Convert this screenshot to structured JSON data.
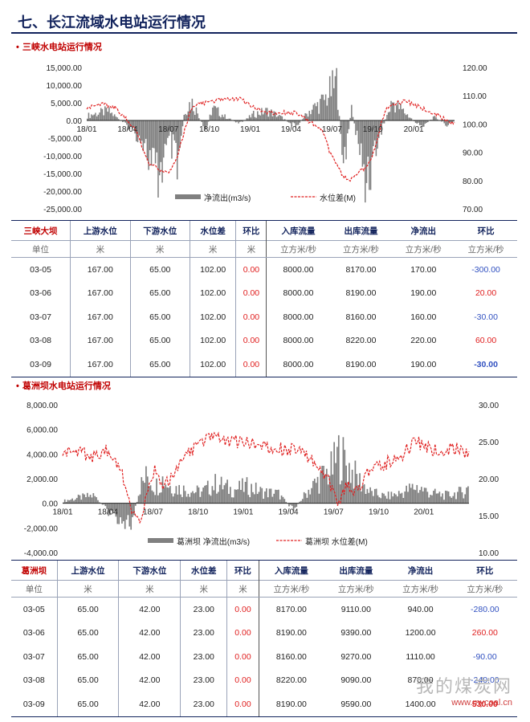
{
  "page": {
    "title": "七、长江流域水电站运行情况"
  },
  "section1": {
    "title": "三峡水电站运行情况"
  },
  "section2": {
    "title": "葛洲坝水电站运行情况"
  },
  "chart_data": [
    {
      "type": "bar+line",
      "title": "三峡水电站运行情况",
      "x_ticks": [
        "18/01",
        "18/04",
        "18/07",
        "18/10",
        "19/01",
        "19/04",
        "19/07",
        "19/10",
        "20/01"
      ],
      "y_left_ticks": [
        "15,000.00",
        "10,000.00",
        "5,000.00",
        "0.00",
        "-5,000.00",
        "-10,000.00",
        "-15,000.00",
        "-20,000.00",
        "-25,000.00"
      ],
      "y_right_ticks": [
        "120.00",
        "110.00",
        "100.00",
        "90.00",
        "80.00",
        "70.00"
      ],
      "ylim_left": [
        -25000,
        15000
      ],
      "ylim_right": [
        70,
        120
      ],
      "legend": [
        "净流出(m3/s)",
        "水位差(M)"
      ],
      "colors": {
        "bars": "#808080",
        "line": "#e02020"
      },
      "series": [
        {
          "name": "净流出(m3/s)",
          "axis": "left",
          "kind": "bar",
          "anchors": [
            [
              0,
              1500
            ],
            [
              3,
              3000
            ],
            [
              6,
              -2000
            ],
            [
              8,
              -6000
            ],
            [
              10,
              -19000
            ],
            [
              11,
              -12000
            ],
            [
              12,
              -7000
            ],
            [
              13,
              -17000
            ],
            [
              14,
              3000
            ],
            [
              15,
              6000
            ],
            [
              16,
              2000
            ],
            [
              17,
              -4000
            ],
            [
              18,
              4000
            ],
            [
              20,
              1000
            ],
            [
              22,
              -1000
            ],
            [
              24,
              2000
            ],
            [
              26,
              3000
            ],
            [
              28,
              1000
            ],
            [
              30,
              -2000
            ],
            [
              32,
              3000
            ],
            [
              34,
              6000
            ],
            [
              36,
              12000
            ],
            [
              37,
              -17000
            ],
            [
              38,
              4000
            ],
            [
              40,
              -18000
            ],
            [
              41,
              -13000
            ],
            [
              42,
              -5000
            ],
            [
              44,
              6000
            ],
            [
              46,
              2000
            ],
            [
              48,
              -2000
            ],
            [
              50,
              1000
            ],
            [
              52,
              -1500
            ],
            [
              53,
              0
            ]
          ]
        },
        {
          "name": "水位差(M)",
          "axis": "right",
          "kind": "line",
          "anchors": [
            [
              0,
              106
            ],
            [
              2,
              107
            ],
            [
              4,
              106
            ],
            [
              6,
              101
            ],
            [
              7,
              98
            ],
            [
              8,
              92
            ],
            [
              9,
              86
            ],
            [
              10,
              85
            ],
            [
              11,
              83
            ],
            [
              12,
              83
            ],
            [
              13,
              88
            ],
            [
              14,
              97
            ],
            [
              15,
              105
            ],
            [
              16,
              107
            ],
            [
              18,
              108
            ],
            [
              20,
              109
            ],
            [
              22,
              109
            ],
            [
              24,
              106
            ],
            [
              26,
              104
            ],
            [
              28,
              104
            ],
            [
              30,
              104
            ],
            [
              32,
              101
            ],
            [
              34,
              98
            ],
            [
              35,
              90
            ],
            [
              36,
              86
            ],
            [
              37,
              81
            ],
            [
              38,
              80
            ],
            [
              39,
              83
            ],
            [
              40,
              84
            ],
            [
              41,
              87
            ],
            [
              42,
              96
            ],
            [
              43,
              105
            ],
            [
              44,
              107
            ],
            [
              46,
              108
            ],
            [
              48,
              106
            ],
            [
              50,
              104
            ],
            [
              52,
              101
            ],
            [
              53,
              100
            ]
          ]
        }
      ]
    },
    {
      "type": "bar+line",
      "title": "葛洲坝水电站运行情况",
      "x_ticks": [
        "18/01",
        "18/04",
        "18/07",
        "18/10",
        "19/01",
        "19/04",
        "19/07",
        "19/10",
        "20/01"
      ],
      "y_left_ticks": [
        "8,000.00",
        "6,000.00",
        "4,000.00",
        "2,000.00",
        "0.00",
        "-2,000.00",
        "-4,000.00"
      ],
      "y_right_ticks": [
        "30.00",
        "25.00",
        "20.00",
        "15.00",
        "10.00"
      ],
      "ylim_left": [
        -4000,
        8000
      ],
      "ylim_right": [
        10,
        30
      ],
      "legend": [
        "葛洲坝 净流出(m3/s)",
        "葛洲坝 水位差(M)"
      ],
      "colors": {
        "bars": "#808080",
        "line": "#e02020"
      },
      "series": [
        {
          "name": "葛洲坝 净流出(m3/s)",
          "axis": "left",
          "kind": "bar",
          "anchors": [
            [
              0,
              200
            ],
            [
              2,
              500
            ],
            [
              4,
              700
            ],
            [
              6,
              -800
            ],
            [
              8,
              -1500
            ],
            [
              9,
              -1800
            ],
            [
              10,
              1500
            ],
            [
              11,
              2500
            ],
            [
              12,
              1500
            ],
            [
              13,
              2200
            ],
            [
              14,
              1500
            ],
            [
              16,
              1200
            ],
            [
              18,
              1000
            ],
            [
              20,
              1800
            ],
            [
              22,
              1200
            ],
            [
              24,
              1500
            ],
            [
              26,
              1000
            ],
            [
              28,
              900
            ],
            [
              30,
              -600
            ],
            [
              32,
              1200
            ],
            [
              34,
              2500
            ],
            [
              35,
              3000
            ],
            [
              36,
              4500
            ],
            [
              37,
              3500
            ],
            [
              38,
              2500
            ],
            [
              40,
              1000
            ],
            [
              42,
              600
            ],
            [
              44,
              900
            ],
            [
              46,
              1500
            ],
            [
              48,
              900
            ],
            [
              50,
              700
            ],
            [
              52,
              1000
            ],
            [
              53,
              1400
            ]
          ]
        },
        {
          "name": "葛洲坝 水位差(M)",
          "axis": "right",
          "kind": "line",
          "anchors": [
            [
              0,
              24
            ],
            [
              2,
              23.5
            ],
            [
              4,
              23
            ],
            [
              6,
              24
            ],
            [
              8,
              20
            ],
            [
              9,
              16
            ],
            [
              10,
              14
            ],
            [
              11,
              18
            ],
            [
              12,
              21
            ],
            [
              13,
              19
            ],
            [
              14,
              20
            ],
            [
              16,
              23
            ],
            [
              18,
              25
            ],
            [
              20,
              26
            ],
            [
              22,
              25
            ],
            [
              24,
              25
            ],
            [
              26,
              24.5
            ],
            [
              28,
              24
            ],
            [
              30,
              24
            ],
            [
              32,
              23
            ],
            [
              34,
              21
            ],
            [
              35,
              19
            ],
            [
              36,
              16.5
            ],
            [
              37,
              19
            ],
            [
              38,
              18
            ],
            [
              40,
              21
            ],
            [
              42,
              22
            ],
            [
              44,
              23
            ],
            [
              46,
              25
            ],
            [
              48,
              24
            ],
            [
              50,
              24
            ],
            [
              52,
              24
            ],
            [
              53,
              23
            ]
          ]
        }
      ]
    }
  ],
  "table1": {
    "headers": [
      "三峡大坝",
      "上游水位",
      "下游水位",
      "水位差",
      "环比",
      "入库流量",
      "出库流量",
      "净流出",
      "环比"
    ],
    "units": [
      "单位",
      "米",
      "米",
      "米",
      "米",
      "立方米/秒",
      "立方米/秒",
      "立方米/秒",
      "立方米/秒"
    ],
    "rows": [
      [
        "03-05",
        "167.00",
        "65.00",
        "102.00",
        "0.00",
        "8000.00",
        "8170.00",
        "170.00",
        "-300.00"
      ],
      [
        "03-06",
        "167.00",
        "65.00",
        "102.00",
        "0.00",
        "8000.00",
        "8190.00",
        "190.00",
        "20.00"
      ],
      [
        "03-07",
        "167.00",
        "65.00",
        "102.00",
        "0.00",
        "8000.00",
        "8160.00",
        "160.00",
        "-30.00"
      ],
      [
        "03-08",
        "167.00",
        "65.00",
        "102.00",
        "0.00",
        "8000.00",
        "8220.00",
        "220.00",
        "60.00"
      ],
      [
        "03-09",
        "167.00",
        "65.00",
        "102.00",
        "0.00",
        "8000.00",
        "8190.00",
        "190.00",
        "-30.00"
      ]
    ]
  },
  "table2": {
    "headers": [
      "葛洲坝",
      "上游水位",
      "下游水位",
      "水位差",
      "环比",
      "入库流量",
      "出库流量",
      "净流出",
      "环比"
    ],
    "units": [
      "单位",
      "米",
      "米",
      "米",
      "米",
      "立方米/秒",
      "立方米/秒",
      "立方米/秒",
      "立方米/秒"
    ],
    "rows": [
      [
        "03-05",
        "65.00",
        "42.00",
        "23.00",
        "0.00",
        "8170.00",
        "9110.00",
        "940.00",
        "-280.00"
      ],
      [
        "03-06",
        "65.00",
        "42.00",
        "23.00",
        "0.00",
        "8190.00",
        "9390.00",
        "1200.00",
        "260.00"
      ],
      [
        "03-07",
        "65.00",
        "42.00",
        "23.00",
        "0.00",
        "8160.00",
        "9270.00",
        "1110.00",
        "-90.00"
      ],
      [
        "03-08",
        "65.00",
        "42.00",
        "23.00",
        "0.00",
        "8220.00",
        "9090.00",
        "870.00",
        "-240.00"
      ],
      [
        "03-09",
        "65.00",
        "42.00",
        "23.00",
        "0.00",
        "8190.00",
        "9590.00",
        "1400.00",
        "530.00"
      ]
    ]
  },
  "watermark": {
    "text": "我的煤炭网",
    "url": "www.mycoal.cn"
  }
}
